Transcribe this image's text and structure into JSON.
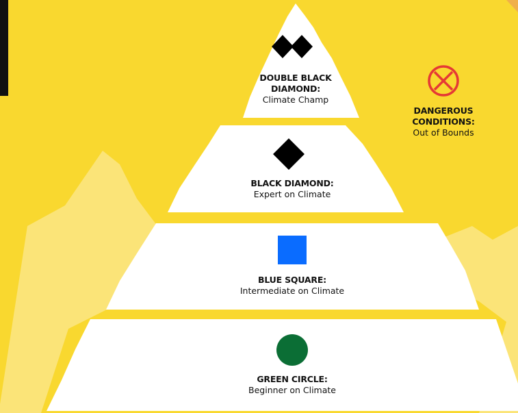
{
  "levels": [
    {
      "title": "DOUBLE BLACK DIAMOND:",
      "subtitle": "Climate Champ"
    },
    {
      "title": "BLACK DIAMOND:",
      "subtitle": "Expert on Climate"
    },
    {
      "title": "BLUE SQUARE:",
      "subtitle": "Intermediate on Climate"
    },
    {
      "title": "GREEN CIRCLE:",
      "subtitle": "Beginner on Climate"
    }
  ],
  "side_note": {
    "title": "DANGEROUS CONDITIONS:",
    "subtitle": "Out of Bounds"
  }
}
